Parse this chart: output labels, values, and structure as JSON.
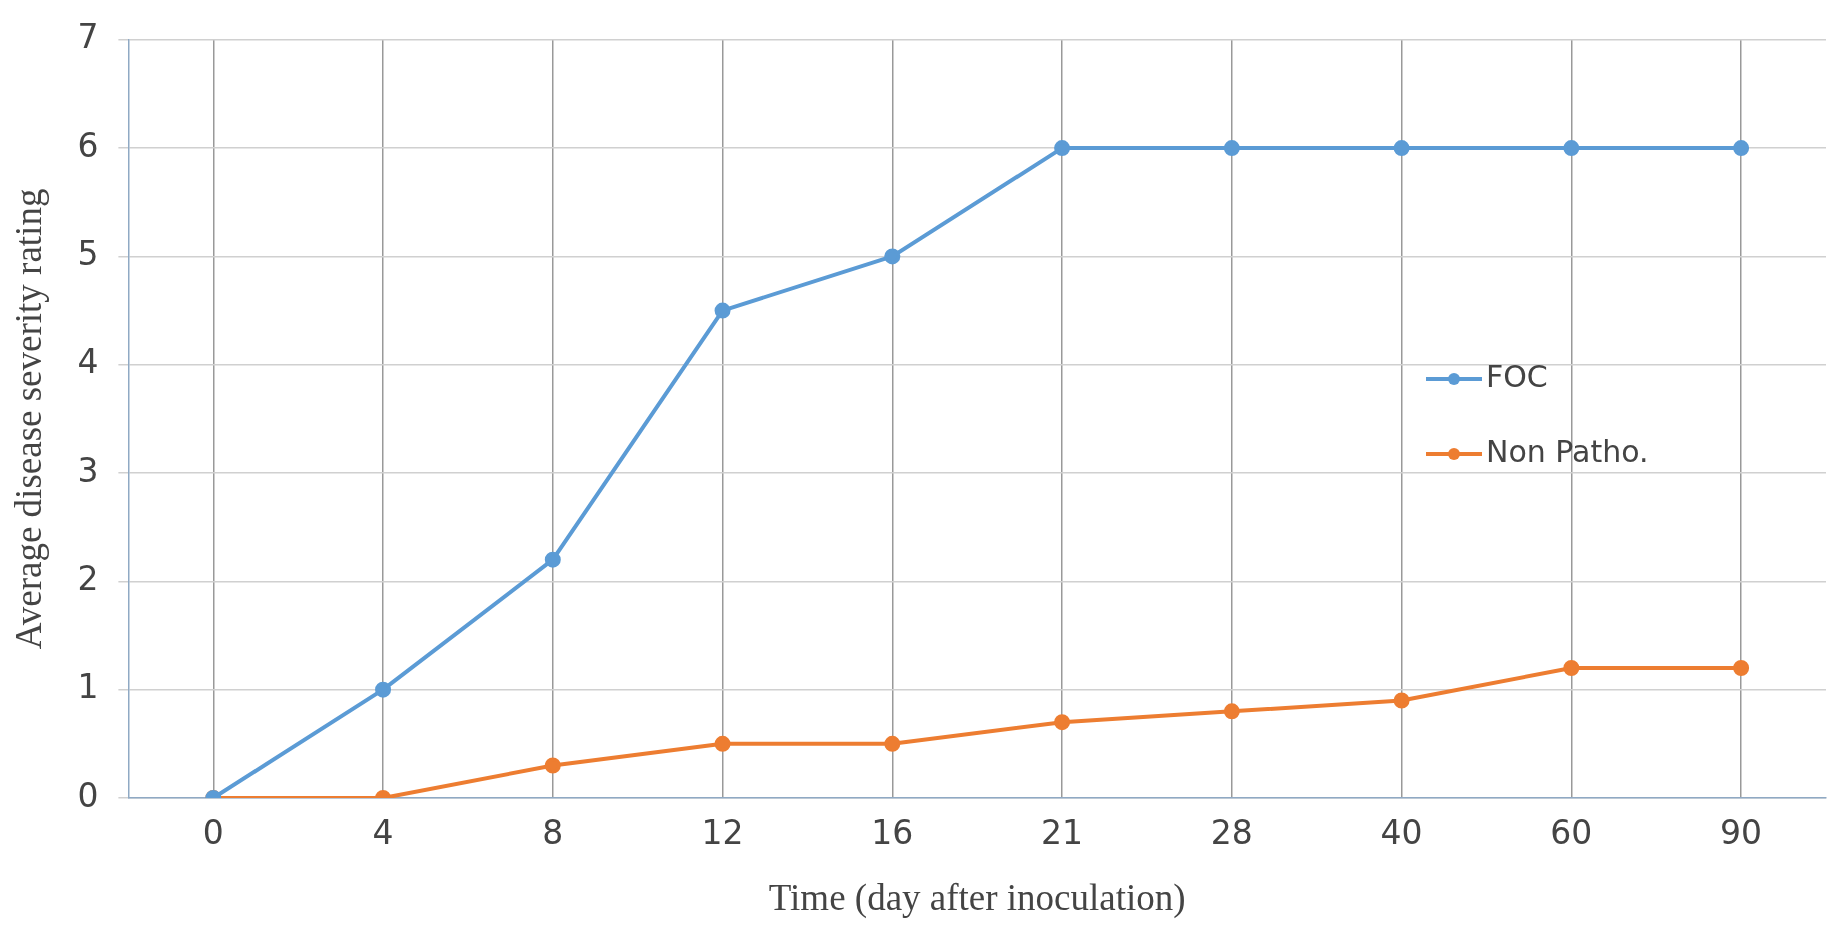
{
  "chart_data": {
    "type": "line",
    "xlabel": "Time (day after inoculation)",
    "ylabel": "Average disease severity rating",
    "categories": [
      "0",
      "4",
      "8",
      "12",
      "16",
      "21",
      "28",
      "40",
      "60",
      "90"
    ],
    "series": [
      {
        "name": "FOC",
        "color": "#5b9bd5",
        "values": [
          0,
          1,
          2.2,
          4.5,
          5,
          6,
          6,
          6,
          6,
          6
        ]
      },
      {
        "name": "Non Patho.",
        "color": "#ed7d31",
        "values": [
          0,
          0,
          0.3,
          0.5,
          0.5,
          0.7,
          0.8,
          0.9,
          1.2,
          1.2
        ]
      }
    ],
    "ylim": [
      0,
      7
    ],
    "yticks": [
      0,
      1,
      2,
      3,
      4,
      5,
      6,
      7
    ],
    "grid": true,
    "legend": "right",
    "marker": "circle",
    "line_style": "solid"
  }
}
